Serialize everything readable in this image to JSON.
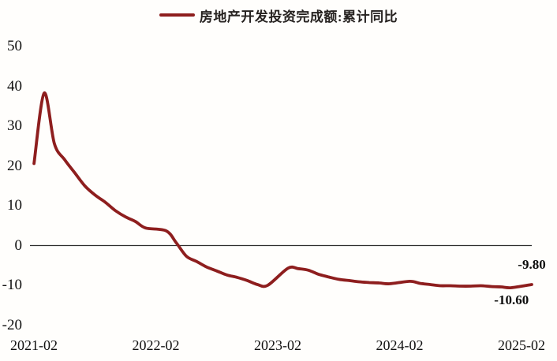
{
  "chart_data": {
    "type": "line",
    "legend": "房地产开发投资完成额:累计同比",
    "legend_position": "top-center",
    "line_color": "#8e1e1e",
    "axis_line_color": "#2f2f2f",
    "label_color": "#111111",
    "grid": false,
    "ylim": [
      -20,
      50
    ],
    "yticks": [
      50,
      40,
      30,
      20,
      10,
      0,
      -10,
      -20
    ],
    "xticks": [
      "2021-02",
      "2022-02",
      "2023-02",
      "2024-02",
      "2025-02"
    ],
    "series": [
      {
        "name": "房地产开发投资完成额:累计同比",
        "points": [
          [
            "2021-01",
            20.6
          ],
          [
            "2021-02",
            38.3
          ],
          [
            "2021-03",
            25.6
          ],
          [
            "2021-04",
            21.6
          ],
          [
            "2021-05",
            18.3
          ],
          [
            "2021-06",
            15.0
          ],
          [
            "2021-07",
            12.7
          ],
          [
            "2021-08",
            10.9
          ],
          [
            "2021-09",
            8.8
          ],
          [
            "2021-10",
            7.2
          ],
          [
            "2021-11",
            6.0
          ],
          [
            "2021-12",
            4.4
          ],
          [
            "2022-02",
            3.7
          ],
          [
            "2022-03",
            0.7
          ],
          [
            "2022-04",
            -2.7
          ],
          [
            "2022-05",
            -4.0
          ],
          [
            "2022-06",
            -5.4
          ],
          [
            "2022-07",
            -6.4
          ],
          [
            "2022-08",
            -7.4
          ],
          [
            "2022-09",
            -8.0
          ],
          [
            "2022-10",
            -8.8
          ],
          [
            "2022-11",
            -9.8
          ],
          [
            "2022-12",
            -10.0
          ],
          [
            "2023-02",
            -5.7
          ],
          [
            "2023-03",
            -5.8
          ],
          [
            "2023-04",
            -6.2
          ],
          [
            "2023-05",
            -7.2
          ],
          [
            "2023-06",
            -7.9
          ],
          [
            "2023-07",
            -8.5
          ],
          [
            "2023-08",
            -8.8
          ],
          [
            "2023-09",
            -9.1
          ],
          [
            "2023-10",
            -9.3
          ],
          [
            "2023-11",
            -9.4
          ],
          [
            "2023-12",
            -9.6
          ],
          [
            "2024-02",
            -9.0
          ],
          [
            "2024-03",
            -9.5
          ],
          [
            "2024-04",
            -9.8
          ],
          [
            "2024-05",
            -10.1
          ],
          [
            "2024-06",
            -10.1
          ],
          [
            "2024-07",
            -10.2
          ],
          [
            "2024-08",
            -10.2
          ],
          [
            "2024-09",
            -10.1
          ],
          [
            "2024-10",
            -10.3
          ],
          [
            "2024-11",
            -10.4
          ],
          [
            "2024-12",
            -10.6
          ],
          [
            "2025-02",
            -9.8
          ]
        ]
      }
    ],
    "annotations": [
      {
        "text": "-9.80",
        "date": "2025-02",
        "value": -9.8,
        "placement": "above"
      },
      {
        "text": "-10.60",
        "date": "2024-12",
        "value": -10.6,
        "placement": "below"
      }
    ]
  }
}
